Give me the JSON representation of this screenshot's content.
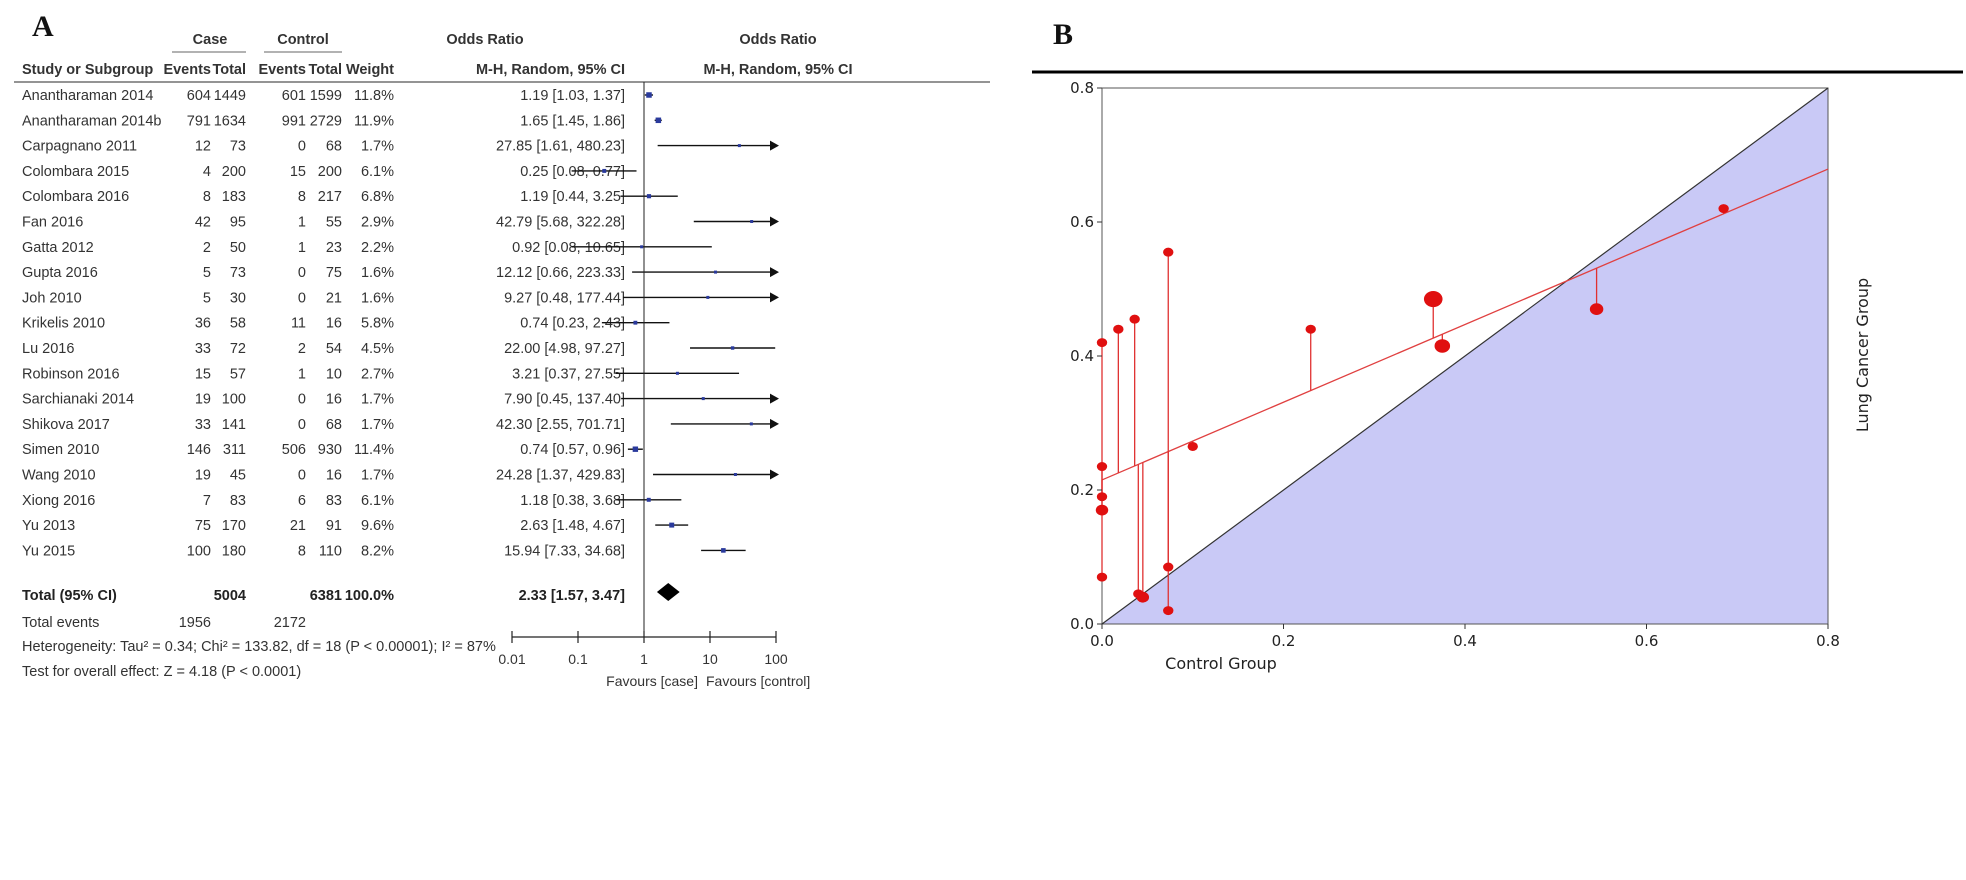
{
  "figure": {
    "panel_a_letter": "A",
    "panel_b_letter": "B"
  },
  "chart_data": [
    {
      "type": "forest",
      "panel": "A",
      "headers": {
        "case_group": "Case",
        "control_group": "Control",
        "or_group": "Odds Ratio",
        "study": "Study or Subgroup",
        "events": "Events",
        "total": "Total",
        "weight": "Weight",
        "method": "M-H, Random, 95% CI",
        "plot_title": "Odds Ratio",
        "plot_method": "M-H, Random, 95% CI"
      },
      "studies": [
        {
          "name": "Anantharaman 2014",
          "case_events": "604",
          "case_total": "1449",
          "control_events": "601",
          "control_total": "1599",
          "weight": "11.8%",
          "ci_text": "1.19 [1.03, 1.37]",
          "or": 1.19,
          "lo": 1.03,
          "hi": 1.37
        },
        {
          "name": "Anantharaman 2014b",
          "case_events": "791",
          "case_total": "1634",
          "control_events": "991",
          "control_total": "2729",
          "weight": "11.9%",
          "ci_text": "1.65 [1.45, 1.86]",
          "or": 1.65,
          "lo": 1.45,
          "hi": 1.86
        },
        {
          "name": "Carpagnano 2011",
          "case_events": "12",
          "case_total": "73",
          "control_events": "0",
          "control_total": "68",
          "weight": "1.7%",
          "ci_text": "27.85 [1.61, 480.23]",
          "or": 27.85,
          "lo": 1.61,
          "hi": 480.23
        },
        {
          "name": "Colombara 2015",
          "case_events": "4",
          "case_total": "200",
          "control_events": "15",
          "control_total": "200",
          "weight": "6.1%",
          "ci_text": "0.25 [0.08, 0.77]",
          "or": 0.25,
          "lo": 0.08,
          "hi": 0.77
        },
        {
          "name": "Colombara 2016",
          "case_events": "8",
          "case_total": "183",
          "control_events": "8",
          "control_total": "217",
          "weight": "6.8%",
          "ci_text": "1.19 [0.44, 3.25]",
          "or": 1.19,
          "lo": 0.44,
          "hi": 3.25
        },
        {
          "name": "Fan 2016",
          "case_events": "42",
          "case_total": "95",
          "control_events": "1",
          "control_total": "55",
          "weight": "2.9%",
          "ci_text": "42.79 [5.68, 322.28]",
          "or": 42.79,
          "lo": 5.68,
          "hi": 322.28
        },
        {
          "name": "Gatta 2012",
          "case_events": "2",
          "case_total": "50",
          "control_events": "1",
          "control_total": "23",
          "weight": "2.2%",
          "ci_text": "0.92 [0.08, 10.65]",
          "or": 0.92,
          "lo": 0.08,
          "hi": 10.65
        },
        {
          "name": "Gupta 2016",
          "case_events": "5",
          "case_total": "73",
          "control_events": "0",
          "control_total": "75",
          "weight": "1.6%",
          "ci_text": "12.12 [0.66, 223.33]",
          "or": 12.12,
          "lo": 0.66,
          "hi": 223.33
        },
        {
          "name": "Joh 2010",
          "case_events": "5",
          "case_total": "30",
          "control_events": "0",
          "control_total": "21",
          "weight": "1.6%",
          "ci_text": "9.27 [0.48, 177.44]",
          "or": 9.27,
          "lo": 0.48,
          "hi": 177.44
        },
        {
          "name": "Krikelis 2010",
          "case_events": "36",
          "case_total": "58",
          "control_events": "11",
          "control_total": "16",
          "weight": "5.8%",
          "ci_text": "0.74 [0.23, 2.43]",
          "or": 0.74,
          "lo": 0.23,
          "hi": 2.43
        },
        {
          "name": "Lu 2016",
          "case_events": "33",
          "case_total": "72",
          "control_events": "2",
          "control_total": "54",
          "weight": "4.5%",
          "ci_text": "22.00 [4.98, 97.27]",
          "or": 22.0,
          "lo": 4.98,
          "hi": 97.27
        },
        {
          "name": "Robinson 2016",
          "case_events": "15",
          "case_total": "57",
          "control_events": "1",
          "control_total": "10",
          "weight": "2.7%",
          "ci_text": "3.21 [0.37, 27.55]",
          "or": 3.21,
          "lo": 0.37,
          "hi": 27.55
        },
        {
          "name": "Sarchianaki 2014",
          "case_events": "19",
          "case_total": "100",
          "control_events": "0",
          "control_total": "16",
          "weight": "1.7%",
          "ci_text": "7.90 [0.45, 137.40]",
          "or": 7.9,
          "lo": 0.45,
          "hi": 137.4
        },
        {
          "name": "Shikova 2017",
          "case_events": "33",
          "case_total": "141",
          "control_events": "0",
          "control_total": "68",
          "weight": "1.7%",
          "ci_text": "42.30 [2.55, 701.71]",
          "or": 42.3,
          "lo": 2.55,
          "hi": 701.71
        },
        {
          "name": "Simen 2010",
          "case_events": "146",
          "case_total": "311",
          "control_events": "506",
          "control_total": "930",
          "weight": "11.4%",
          "ci_text": "0.74 [0.57, 0.96]",
          "or": 0.74,
          "lo": 0.57,
          "hi": 0.96
        },
        {
          "name": "Wang 2010",
          "case_events": "19",
          "case_total": "45",
          "control_events": "0",
          "control_total": "16",
          "weight": "1.7%",
          "ci_text": "24.28 [1.37, 429.83]",
          "or": 24.28,
          "lo": 1.37,
          "hi": 429.83
        },
        {
          "name": "Xiong 2016",
          "case_events": "7",
          "case_total": "83",
          "control_events": "6",
          "control_total": "83",
          "weight": "6.1%",
          "ci_text": "1.18 [0.38, 3.68]",
          "or": 1.18,
          "lo": 0.38,
          "hi": 3.68
        },
        {
          "name": "Yu 2013",
          "case_events": "75",
          "case_total": "170",
          "control_events": "21",
          "control_total": "91",
          "weight": "9.6%",
          "ci_text": "2.63 [1.48, 4.67]",
          "or": 2.63,
          "lo": 1.48,
          "hi": 4.67
        },
        {
          "name": "Yu 2015",
          "case_events": "100",
          "case_total": "180",
          "control_events": "8",
          "control_total": "110",
          "weight": "8.2%",
          "ci_text": "15.94 [7.33, 34.68]",
          "or": 15.94,
          "lo": 7.33,
          "hi": 34.68
        }
      ],
      "total": {
        "name": "Total (95% CI)",
        "case_total": "5004",
        "control_total": "6381",
        "weight": "100.0%",
        "ci_text": "2.33 [1.57, 3.47]",
        "or": 2.33,
        "lo": 1.57,
        "hi": 3.47
      },
      "total_events": {
        "label": "Total events",
        "case": "1956",
        "control": "2172"
      },
      "heterogeneity": "Heterogeneity: Tau² = 0.34; Chi² = 133.82, df = 18 (P < 0.00001); I² = 87%",
      "overall_effect": "Test for overall effect: Z = 4.18 (P < 0.0001)",
      "axis": {
        "scale": "log",
        "ticks": [
          0.01,
          0.1,
          1,
          10,
          100
        ],
        "tick_labels": [
          "0.01",
          "0.1",
          "1",
          "10",
          "100"
        ],
        "xlim": [
          0.01,
          100
        ]
      },
      "favours_left": "Favours [case]",
      "favours_right": "Favours [control]"
    },
    {
      "type": "scatter",
      "panel": "B",
      "xlabel": "Control Group",
      "ylabel": "Lung Cancer Group",
      "xlim": [
        0,
        0.8
      ],
      "ylim": [
        0,
        0.8
      ],
      "xticks": [
        "0.0",
        "0.2",
        "0.4",
        "0.6",
        "0.8"
      ],
      "yticks": [
        "0.0",
        "0.2",
        "0.4",
        "0.6",
        "0.8"
      ],
      "reference_line": "y = x",
      "regression_line": {
        "intercept": 0.215,
        "slope": 0.58
      },
      "points": [
        {
          "x": 0.0,
          "y": 0.42,
          "size": 1
        },
        {
          "x": 0.0,
          "y": 0.235,
          "size": 1
        },
        {
          "x": 0.0,
          "y": 0.19,
          "size": 1
        },
        {
          "x": 0.0,
          "y": 0.17,
          "size": 1.2
        },
        {
          "x": 0.0,
          "y": 0.07,
          "size": 1
        },
        {
          "x": 0.018,
          "y": 0.44,
          "size": 1
        },
        {
          "x": 0.036,
          "y": 0.455,
          "size": 1
        },
        {
          "x": 0.04,
          "y": 0.045,
          "size": 1
        },
        {
          "x": 0.045,
          "y": 0.04,
          "size": 1.2
        },
        {
          "x": 0.073,
          "y": 0.555,
          "size": 1
        },
        {
          "x": 0.073,
          "y": 0.085,
          "size": 1
        },
        {
          "x": 0.073,
          "y": 0.02,
          "size": 1
        },
        {
          "x": 0.1,
          "y": 0.265,
          "size": 1
        },
        {
          "x": 0.23,
          "y": 0.44,
          "size": 1
        },
        {
          "x": 0.365,
          "y": 0.485,
          "size": 1.8
        },
        {
          "x": 0.375,
          "y": 0.415,
          "size": 1.5
        },
        {
          "x": 0.545,
          "y": 0.47,
          "size": 1.3
        },
        {
          "x": 0.685,
          "y": 0.62,
          "size": 1
        }
      ]
    }
  ]
}
